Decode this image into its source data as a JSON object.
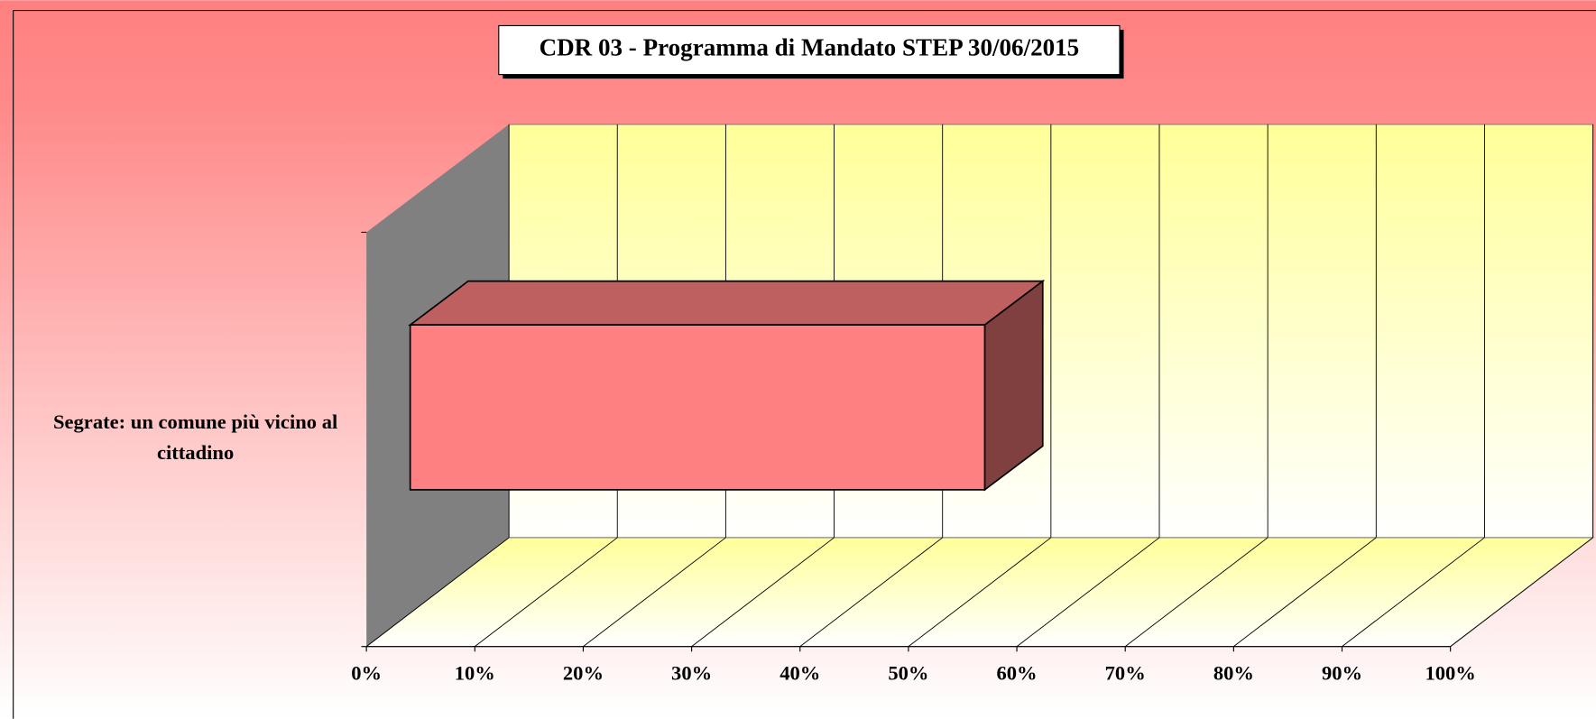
{
  "chart_data": {
    "type": "bar3d",
    "orientation": "horizontal",
    "title": "CDR 03 -  Programma di Mandato STEP 30/06/2015",
    "categories": [
      "Segrate: un comune più vicino al cittadino"
    ],
    "values": [
      53
    ],
    "color": "#ff8080",
    "xlim": [
      0,
      100
    ],
    "xticks": [
      {
        "value": 0,
        "label": "0%"
      },
      {
        "value": 10,
        "label": "10%"
      },
      {
        "value": 20,
        "label": "20%"
      },
      {
        "value": 30,
        "label": "30%"
      },
      {
        "value": 40,
        "label": "40%"
      },
      {
        "value": 50,
        "label": "50%"
      },
      {
        "value": 60,
        "label": "60%"
      },
      {
        "value": 70,
        "label": "70%"
      },
      {
        "value": 80,
        "label": "80%"
      },
      {
        "value": 90,
        "label": "90%"
      },
      {
        "value": 100,
        "label": "100%"
      }
    ],
    "grid": true
  }
}
